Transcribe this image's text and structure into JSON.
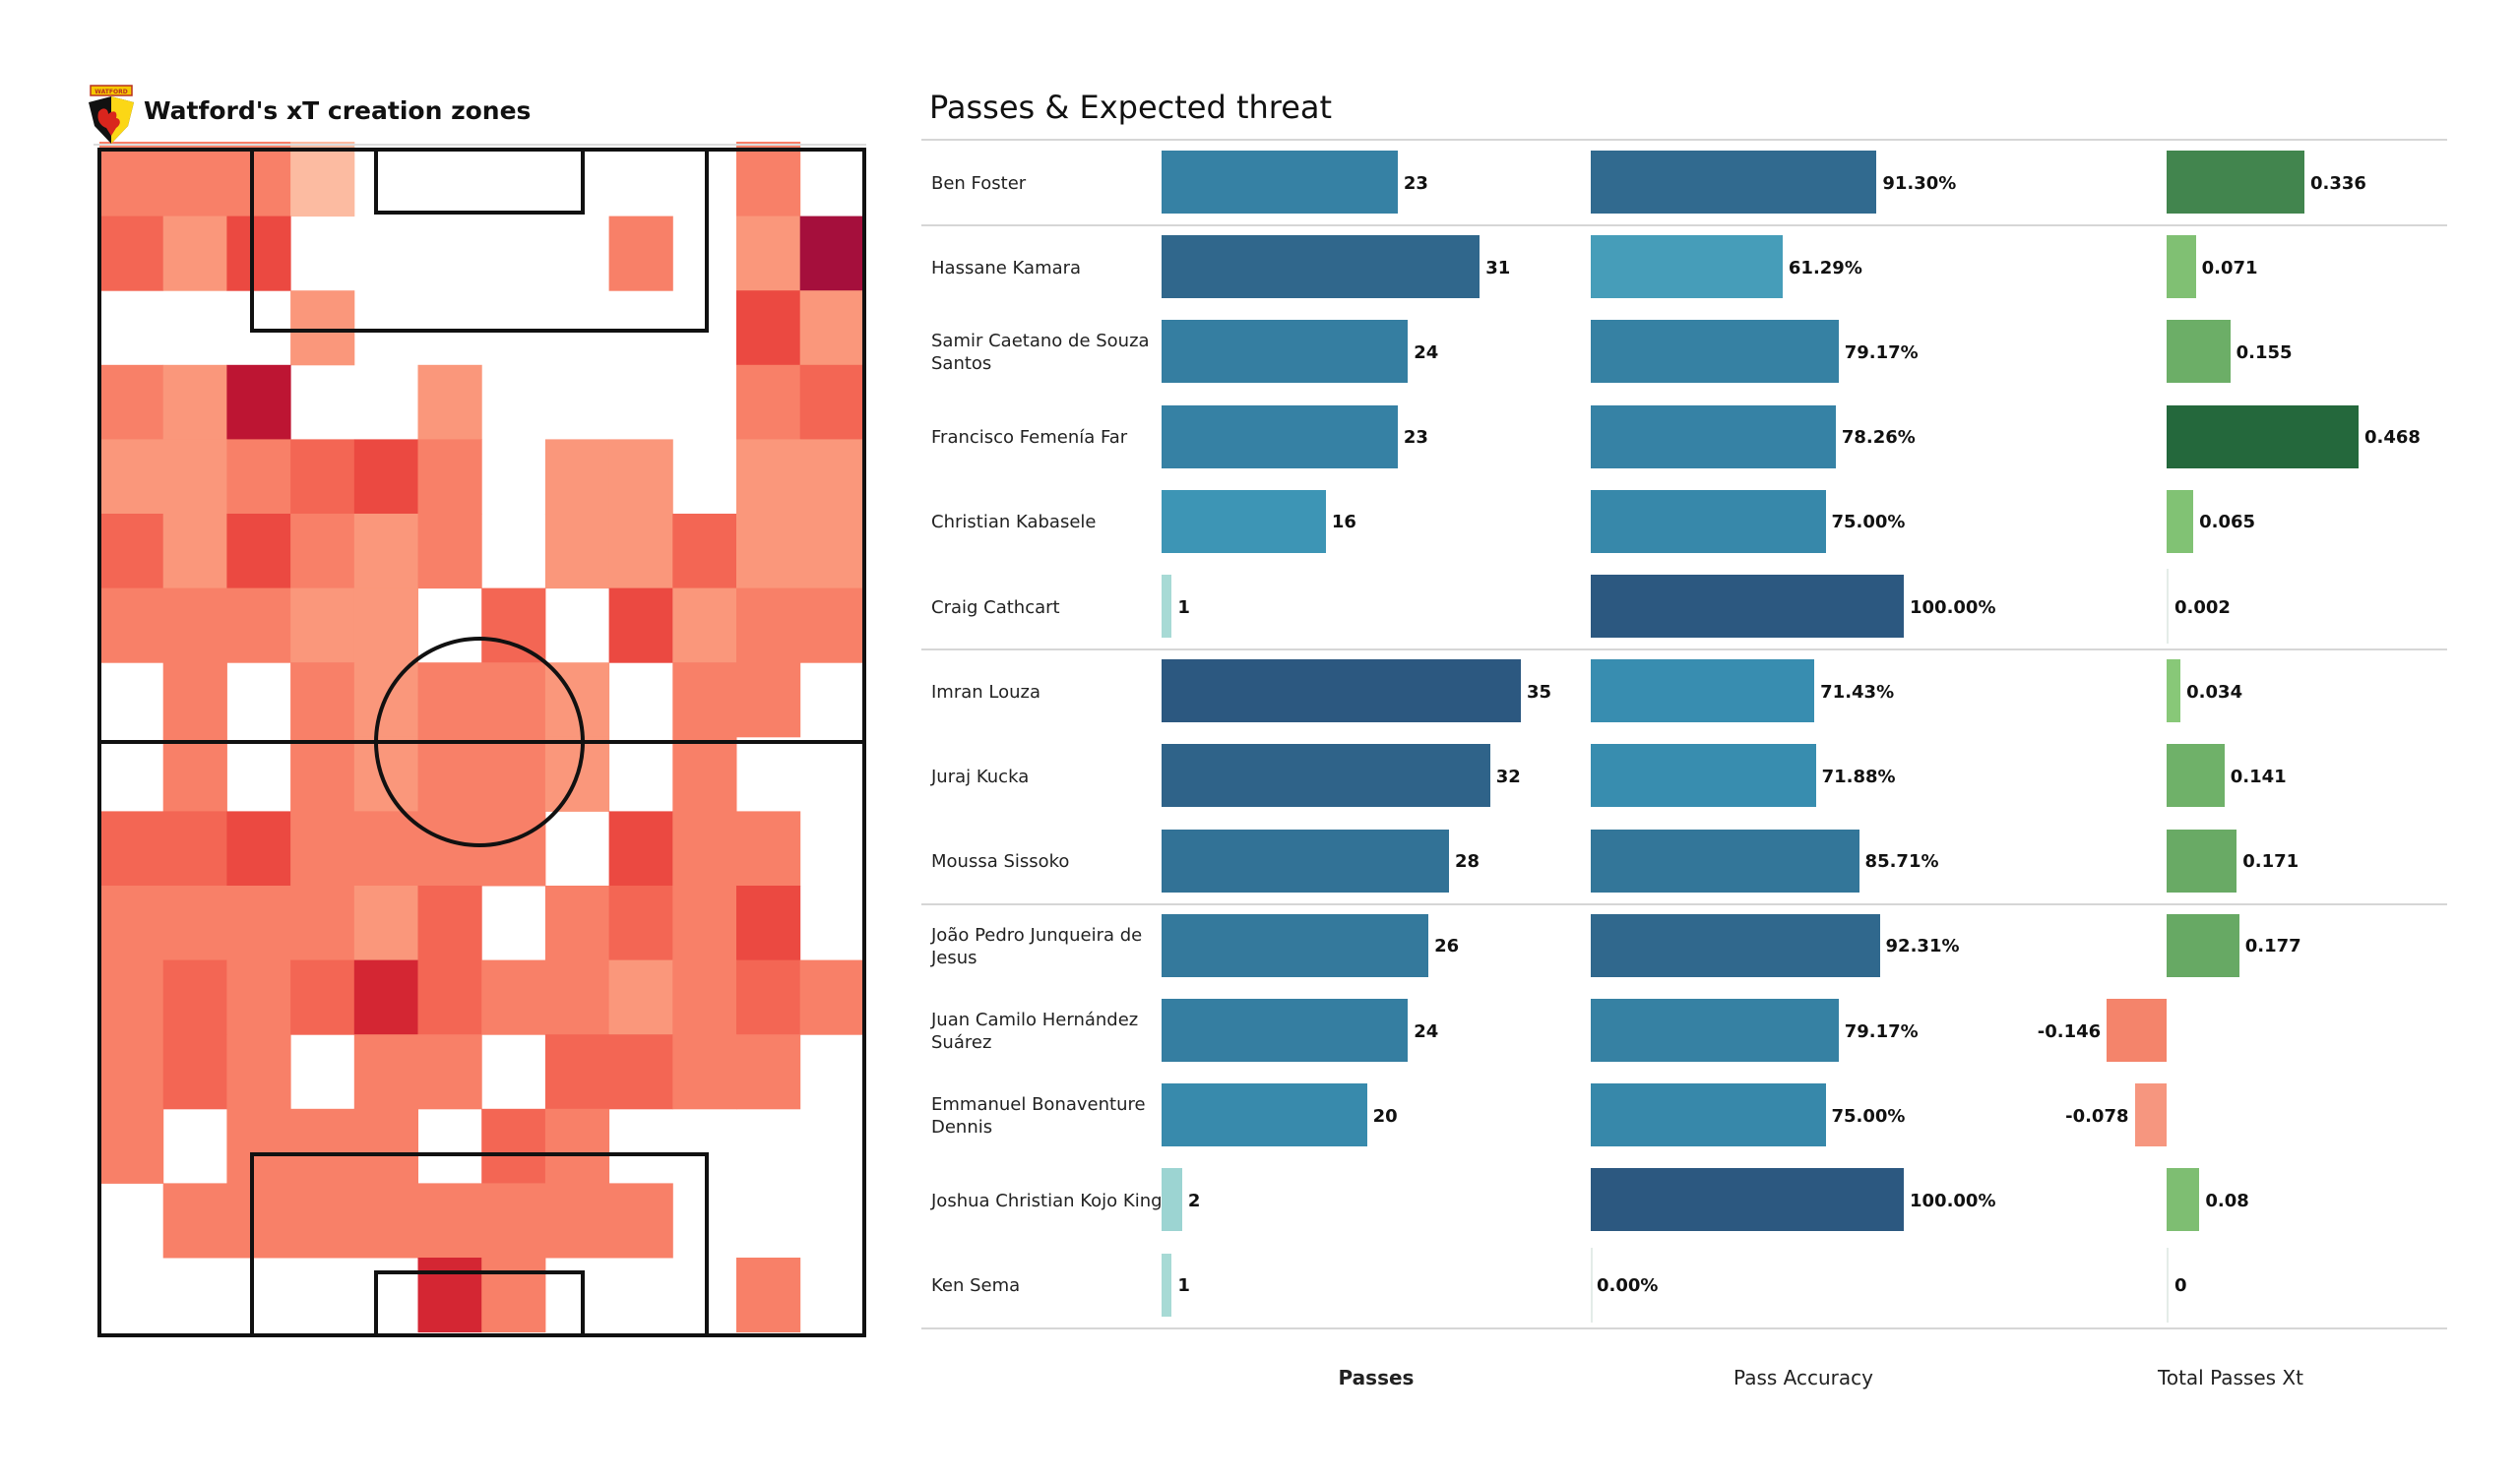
{
  "left": {
    "title": "Watford's xT creation zones",
    "logo": "watford-crest-icon",
    "logo_text": "WATFORD"
  },
  "right": {
    "title": "Passes & Expected threat",
    "columns": [
      "Passes",
      "Pass Accuracy",
      "Total Passes Xt"
    ]
  },
  "colors": {
    "heat_low": "#fcbba1",
    "heat_high": "#a50f15",
    "xt_positive_low": "#a1d99b",
    "xt_positive_high": "#1b6a36",
    "xt_negative": "#f4846b",
    "pitch_line": "#111111"
  },
  "chart_data": [
    {
      "type": "heatmap",
      "title": "Watford's xT creation zones",
      "grid_columns": 12,
      "grid_rows": 16,
      "value_scale": "relative intensity 0 (empty) to 9 (max)",
      "values": [
        [
          4,
          4,
          4,
          1,
          0,
          0,
          0,
          0,
          0,
          0,
          4,
          0
        ],
        [
          5,
          3,
          6,
          0,
          0,
          0,
          0,
          0,
          4,
          0,
          3,
          9
        ],
        [
          0,
          0,
          0,
          3,
          0,
          0,
          0,
          0,
          0,
          0,
          6,
          3
        ],
        [
          4,
          3,
          8,
          0,
          0,
          3,
          0,
          0,
          0,
          0,
          4,
          5
        ],
        [
          3,
          3,
          4,
          5,
          6,
          4,
          0,
          3,
          3,
          0,
          3,
          3
        ],
        [
          5,
          3,
          6,
          4,
          3,
          4,
          0,
          3,
          3,
          5,
          3,
          3
        ],
        [
          4,
          4,
          4,
          3,
          3,
          0,
          5,
          0,
          6,
          3,
          4,
          4
        ],
        [
          0,
          4,
          0,
          4,
          3,
          4,
          4,
          3,
          0,
          4,
          4,
          0
        ],
        [
          0,
          4,
          0,
          4,
          3,
          4,
          4,
          3,
          0,
          4,
          0,
          0
        ],
        [
          5,
          5,
          6,
          4,
          4,
          4,
          4,
          0,
          6,
          4,
          4,
          0
        ],
        [
          4,
          4,
          4,
          4,
          3,
          5,
          0,
          4,
          5,
          4,
          6,
          0
        ],
        [
          4,
          5,
          4,
          5,
          7,
          5,
          4,
          4,
          3,
          4,
          5,
          4
        ],
        [
          4,
          5,
          4,
          0,
          4,
          4,
          0,
          5,
          5,
          4,
          4,
          0
        ],
        [
          4,
          0,
          4,
          4,
          4,
          0,
          5,
          4,
          0,
          0,
          0,
          0
        ],
        [
          0,
          4,
          4,
          4,
          4,
          4,
          4,
          4,
          4,
          0,
          0,
          0
        ],
        [
          0,
          0,
          0,
          0,
          0,
          7,
          4,
          0,
          0,
          0,
          4,
          0
        ]
      ]
    },
    {
      "type": "bar",
      "title": "Passes & Expected threat",
      "categories": [
        "Ben Foster",
        "Hassane Kamara",
        "Samir Caetano de Souza Santos",
        "Francisco Femenía Far",
        "Christian Kabasele",
        "Craig Cathcart",
        "Imran Louza",
        "Juraj Kucka",
        "Moussa Sissoko",
        "João Pedro Junqueira de Jesus",
        "Juan Camilo Hernández Suárez",
        "Emmanuel Bonaventure Dennis",
        "Joshua Christian Kojo King",
        "Ken Sema"
      ],
      "group_breaks_after": [
        0,
        5,
        8
      ],
      "series": [
        {
          "name": "Passes",
          "values": [
            23,
            31,
            24,
            23,
            16,
            1,
            35,
            32,
            28,
            26,
            24,
            20,
            2,
            1
          ],
          "labels": [
            "23",
            "31",
            "24",
            "23",
            "16",
            "1",
            "35",
            "32",
            "28",
            "26",
            "24",
            "20",
            "2",
            "1"
          ],
          "xlim": [
            0,
            35
          ]
        },
        {
          "name": "Pass Accuracy",
          "values": [
            91.3,
            61.29,
            79.17,
            78.26,
            75.0,
            100.0,
            71.43,
            71.88,
            85.71,
            92.31,
            79.17,
            75.0,
            100.0,
            0.0
          ],
          "labels": [
            "91.30%",
            "61.29%",
            "79.17%",
            "78.26%",
            "75.00%",
            "100.00%",
            "71.43%",
            "71.88%",
            "85.71%",
            "92.31%",
            "79.17%",
            "75.00%",
            "100.00%",
            "0.00%"
          ],
          "xlim": [
            0,
            100
          ]
        },
        {
          "name": "Total Passes Xt",
          "values": [
            0.336,
            0.071,
            0.155,
            0.468,
            0.065,
            0.002,
            0.034,
            0.141,
            0.171,
            0.177,
            -0.146,
            -0.078,
            0.08,
            0
          ],
          "labels": [
            "0.336",
            "0.071",
            "0.155",
            "0.468",
            "0.065",
            "0.002",
            "0.034",
            "0.141",
            "0.171",
            "0.177",
            "-0.146",
            "-0.078",
            "0.08",
            "0"
          ],
          "xlim": [
            -0.146,
            0.468
          ]
        }
      ],
      "xlabel": "",
      "ylabel": ""
    }
  ]
}
